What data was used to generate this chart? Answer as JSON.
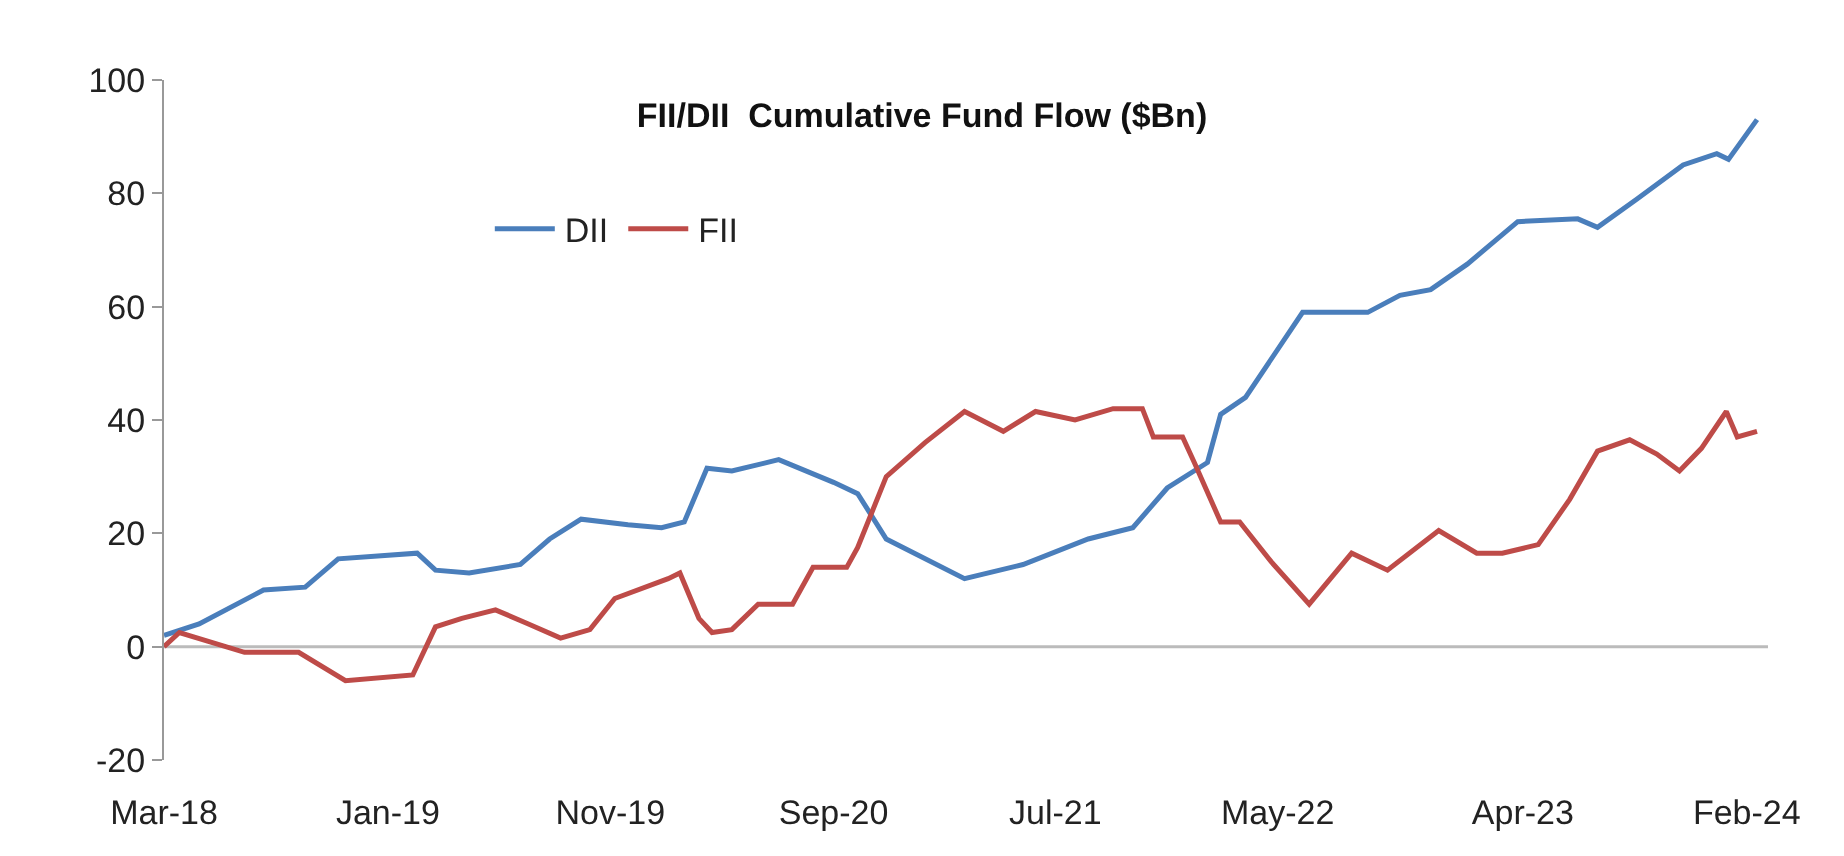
{
  "chart_data": {
    "type": "line",
    "title": "FII/DII  Cumulative Fund Flow ($Bn)",
    "xlim": [
      "2018-03-01",
      "2024-03-01"
    ],
    "xticks": [
      {
        "value": "2018-03-01",
        "label": "Mar-18"
      },
      {
        "value": "2019-01-01",
        "label": "Jan-19"
      },
      {
        "value": "2019-11-01",
        "label": "Nov-19"
      },
      {
        "value": "2020-09-01",
        "label": "Sep-20"
      },
      {
        "value": "2021-07-01",
        "label": "Jul-21"
      },
      {
        "value": "2022-05-01",
        "label": "May-22"
      },
      {
        "value": "2023-04-01",
        "label": "Apr-23"
      },
      {
        "value": "2024-02-01",
        "label": "Feb-24"
      }
    ],
    "ylim": [
      -20,
      100
    ],
    "yticks": [
      -20,
      0,
      20,
      40,
      60,
      80,
      100
    ],
    "ref_lines": [
      {
        "axis": "y",
        "value": 0,
        "color": "#bbbbbb"
      }
    ],
    "grid": false,
    "legend": "top left",
    "marker": "none",
    "line_style": "solid",
    "series": [
      {
        "name": "DII",
        "color": "#4a7ebb",
        "x": [
          "2018-03-01",
          "2018-04-18",
          "2018-07-15",
          "2018-09-10",
          "2018-10-25",
          "2019-02-10",
          "2019-03-07",
          "2019-04-22",
          "2019-07-01",
          "2019-08-10",
          "2019-09-22",
          "2019-11-25",
          "2020-01-10",
          "2020-02-10",
          "2020-03-12",
          "2020-04-15",
          "2020-06-18",
          "2020-09-01",
          "2020-10-04",
          "2020-11-12",
          "2021-02-27",
          "2021-05-18",
          "2021-08-15",
          "2021-10-15",
          "2021-12-01",
          "2022-01-25",
          "2022-02-12",
          "2022-03-18",
          "2022-06-04",
          "2022-09-01",
          "2022-10-15",
          "2022-11-26",
          "2023-01-15",
          "2023-03-25",
          "2023-06-15",
          "2023-07-12",
          "2023-09-04",
          "2023-11-06",
          "2023-12-22",
          "2024-01-07",
          "2024-02-15"
        ],
        "values": [
          2,
          4,
          10,
          10.5,
          15.5,
          16.5,
          13.5,
          13,
          14.5,
          19,
          22.5,
          21.5,
          21,
          22,
          31.5,
          31,
          33,
          29,
          27,
          19,
          12,
          14.5,
          19,
          21,
          28,
          32.5,
          41,
          44,
          59,
          59,
          62,
          63,
          67.5,
          75,
          75.5,
          74,
          79,
          85,
          87,
          86,
          93
        ]
      },
      {
        "name": "FII",
        "color": "#be4b48",
        "x": [
          "2018-03-01",
          "2018-03-22",
          "2018-06-19",
          "2018-09-01",
          "2018-11-04",
          "2019-02-04",
          "2019-03-07",
          "2019-04-12",
          "2019-05-28",
          "2019-07-12",
          "2019-08-25",
          "2019-10-04",
          "2019-11-07",
          "2020-01-19",
          "2020-02-04",
          "2020-03-01",
          "2020-03-19",
          "2020-04-15",
          "2020-05-21",
          "2020-07-07",
          "2020-08-04",
          "2020-09-19",
          "2020-10-04",
          "2020-11-12",
          "2021-01-04",
          "2021-02-27",
          "2021-04-21",
          "2021-06-04",
          "2021-07-28",
          "2021-09-18",
          "2021-10-28",
          "2021-11-12",
          "2021-12-22",
          "2022-01-07",
          "2022-02-12",
          "2022-03-10",
          "2022-04-22",
          "2022-06-13",
          "2022-08-10",
          "2022-09-28",
          "2022-12-07",
          "2023-01-28",
          "2023-03-04",
          "2023-04-22",
          "2023-06-04",
          "2023-07-12",
          "2023-08-25",
          "2023-10-01",
          "2023-11-01",
          "2023-12-01",
          "2024-01-04",
          "2024-01-19",
          "2024-02-15"
        ],
        "values": [
          0,
          2.5,
          -1,
          -1,
          -6,
          -5,
          3.5,
          5,
          6.5,
          4,
          1.5,
          3,
          8.5,
          12,
          13,
          5,
          2.5,
          3,
          7.5,
          7.5,
          14,
          14,
          17.5,
          30,
          36,
          41.5,
          38,
          41.5,
          40,
          42,
          42,
          37,
          37,
          32.5,
          22,
          22,
          15,
          7.5,
          16.5,
          13.5,
          20.5,
          16.5,
          16.5,
          18,
          26,
          34.5,
          36.5,
          34,
          31,
          35,
          41.5,
          37,
          38
        ]
      }
    ]
  }
}
